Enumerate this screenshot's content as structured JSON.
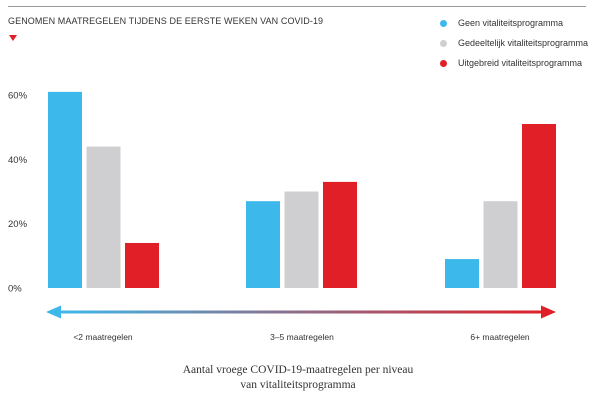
{
  "title": "GENOMEN MAATREGELEN TIJDENS DE EERSTE WEKEN VAN COVID-19",
  "title_marker_icon": "triangle-down-icon",
  "legend": [
    {
      "label": "Geen vitaliteitsprogramma",
      "color": "#3db8ea"
    },
    {
      "label": "Gedeeltelijk vitaliteitsprogramma",
      "color": "#cfcfd1"
    },
    {
      "label": "Uitgebreid vitaliteitsprogramma",
      "color": "#e01f26"
    }
  ],
  "arrow": {
    "start_color": "#3db8ea",
    "end_color": "#e01f26"
  },
  "caption": {
    "line1": "Aantal vroege COVID-19-maatregelen per niveau",
    "line2": "van vitaliteitsprogramma"
  },
  "chart_data": {
    "type": "bar",
    "title": "GENOMEN MAATREGELEN TIJDENS DE EERSTE WEKEN VAN COVID-19",
    "categories": [
      "<2 maatregelen",
      "3–5 maatregelen",
      "6+ maatregelen"
    ],
    "series": [
      {
        "name": "Geen vitaliteitsprogramma",
        "color": "#3db8ea",
        "values": [
          61,
          27,
          9
        ]
      },
      {
        "name": "Gedeeltelijk vitaliteitsprogramma",
        "color": "#cfcfd1",
        "values": [
          44,
          30,
          27
        ]
      },
      {
        "name": "Uitgebreid vitaliteitsprogramma",
        "color": "#e01f26",
        "values": [
          14,
          33,
          51
        ]
      }
    ],
    "yticks": [
      0,
      20,
      40,
      60
    ],
    "ytick_labels": [
      "0%",
      "20%",
      "40%",
      "60%"
    ],
    "ylim": [
      0,
      65
    ],
    "xlabel": "Aantal vroege COVID-19-maatregelen per niveau van vitaliteitsprogramma",
    "ylabel": "",
    "grid": false,
    "legend_position": "top-right"
  }
}
